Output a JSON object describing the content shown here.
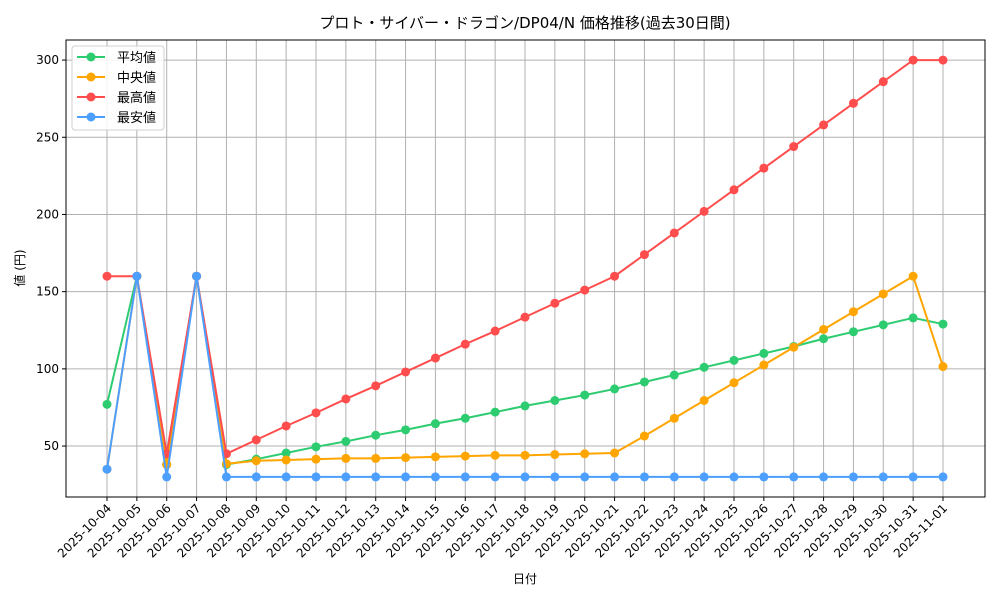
{
  "chart_data": {
    "type": "line",
    "title": "プロト・サイバー・ドラゴン/DP04/N 価格推移(過去30日間)",
    "xlabel": "日付",
    "ylabel": "値 (円)",
    "ylim": [
      17,
      313
    ],
    "yticks": [
      50,
      100,
      150,
      200,
      250,
      300
    ],
    "grid": true,
    "legend_position": "upper left",
    "x": [
      "2025-10-04",
      "2025-10-05",
      "2025-10-06",
      "2025-10-07",
      "2025-10-08",
      "2025-10-09",
      "2025-10-10",
      "2025-10-11",
      "2025-10-12",
      "2025-10-13",
      "2025-10-14",
      "2025-10-15",
      "2025-10-16",
      "2025-10-17",
      "2025-10-18",
      "2025-10-19",
      "2025-10-20",
      "2025-10-21",
      "2025-10-22",
      "2025-10-23",
      "2025-10-24",
      "2025-10-25",
      "2025-10-26",
      "2025-10-27",
      "2025-10-28",
      "2025-10-29",
      "2025-10-30",
      "2025-10-31",
      "2025-11-01"
    ],
    "series": [
      {
        "name": "平均値",
        "color": "#2ecc71",
        "values": [
          77,
          160,
          38,
          160,
          38,
          41.5,
          45.5,
          49.5,
          53,
          57,
          60.5,
          64.5,
          68,
          72,
          76,
          79.5,
          83,
          87,
          91.5,
          96,
          101,
          105.5,
          110,
          114.5,
          119.5,
          124,
          128.5,
          133,
          129
        ]
      },
      {
        "name": "中央値",
        "color": "#ffa500",
        "values": [
          35,
          160,
          38,
          160,
          38.5,
          40.5,
          41,
          41.5,
          42,
          42,
          42.5,
          43,
          43.5,
          44,
          44,
          44.5,
          45,
          45.5,
          56.5,
          68,
          79.5,
          91,
          102.5,
          114,
          125.5,
          137,
          148.5,
          160,
          101.5
        ]
      },
      {
        "name": "最高値",
        "color": "#ff4d4d",
        "values": [
          160,
          160,
          45,
          160,
          45,
          54,
          63,
          71.5,
          80.5,
          89,
          98,
          107,
          116,
          124.5,
          133.5,
          142.5,
          151,
          160,
          174,
          188,
          202,
          216,
          230,
          244,
          258,
          272,
          286,
          300,
          300
        ]
      },
      {
        "name": "最安値",
        "color": "#4d9fff",
        "values": [
          35,
          160,
          30,
          160,
          30,
          30,
          30,
          30,
          30,
          30,
          30,
          30,
          30,
          30,
          30,
          30,
          30,
          30,
          30,
          30,
          30,
          30,
          30,
          30,
          30,
          30,
          30,
          30,
          30
        ]
      }
    ]
  }
}
